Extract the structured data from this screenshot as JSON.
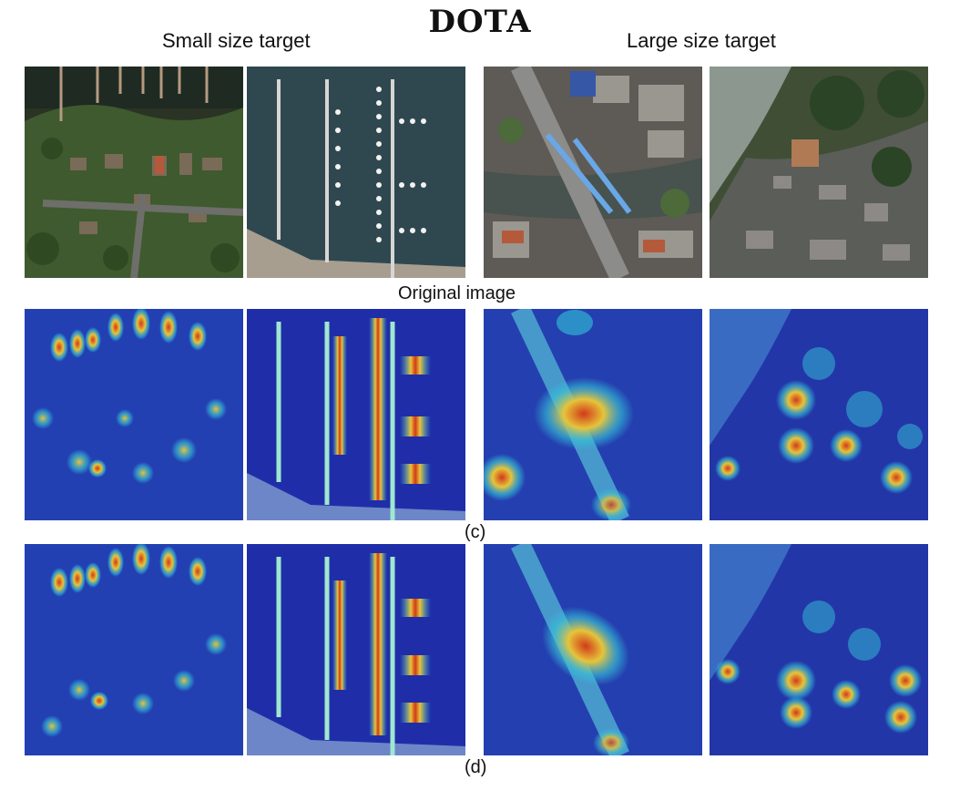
{
  "figure": {
    "title": "DOTA",
    "column_headers": {
      "small": "Small size target",
      "large": "Large size target"
    },
    "row_labels": {
      "original": "Original image",
      "c": "(c)",
      "d": "(d)"
    }
  },
  "colors": {
    "heat_low": "#1f2ea8",
    "heat_mid": "#34c4d8",
    "heat_high": "#d23a1a",
    "aerial_green": "#3e5a2e",
    "water": "#2f4850"
  }
}
